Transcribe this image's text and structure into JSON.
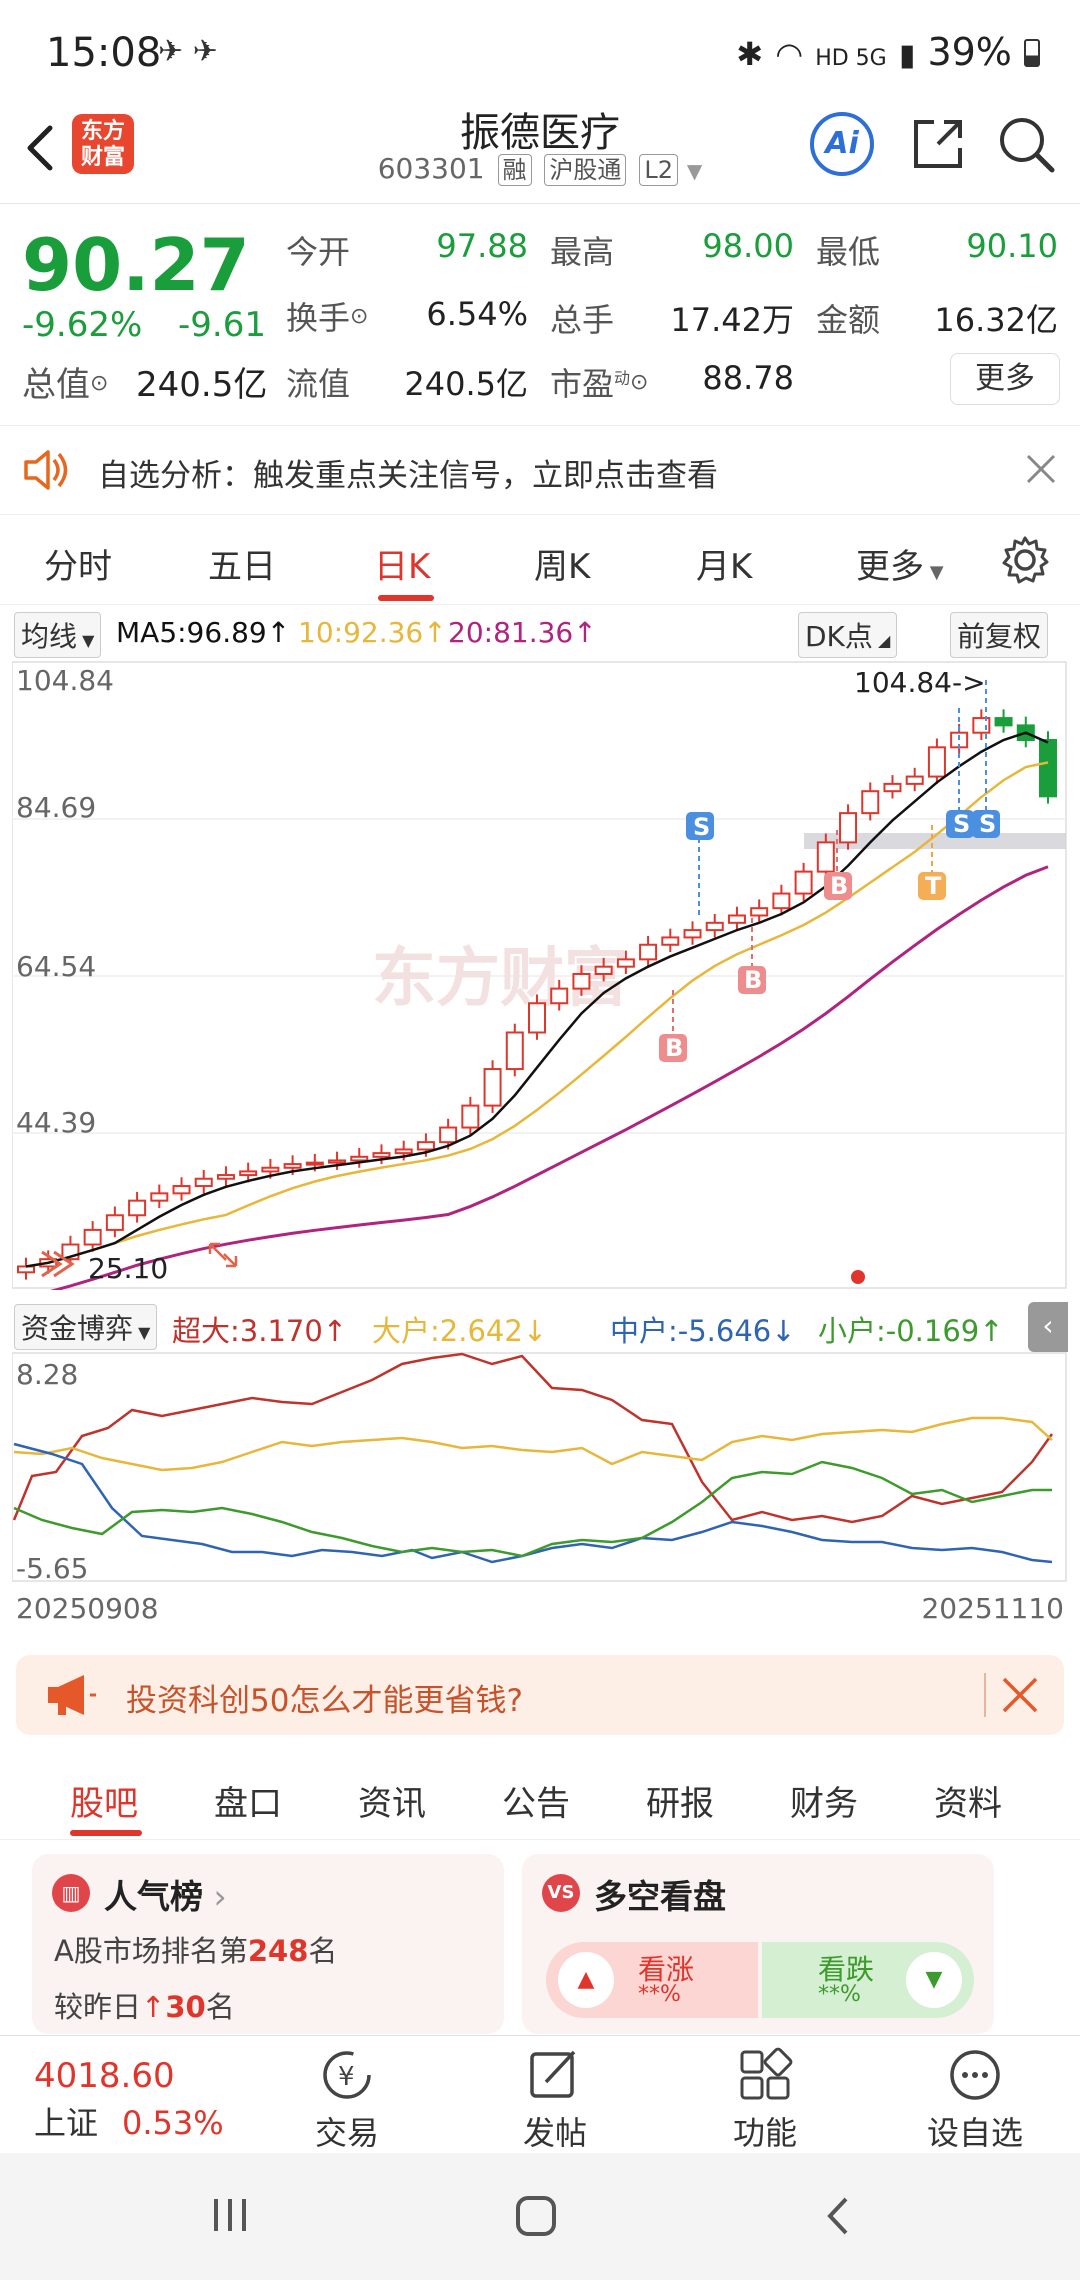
{
  "status_bar": {
    "time": "15:08",
    "network": "HD 5G",
    "battery": "39%"
  },
  "header": {
    "logo_text": "东方财富",
    "title": "振德医疗",
    "code": "603301",
    "tags": [
      "融",
      "沪股通",
      "L2"
    ],
    "ai_label": "Ai"
  },
  "quote": {
    "price": "90.27",
    "change_pct": "-9.62%",
    "change_val": "-9.61",
    "open_label": "今开",
    "open": "97.88",
    "high_label": "最高",
    "high": "98.00",
    "low_label": "最低",
    "low": "90.10",
    "turnover_label": "换手",
    "turnover": "6.54%",
    "volume_label": "总手",
    "volume": "17.42万",
    "amount_label": "金额",
    "amount": "16.32亿",
    "mcap_label": "总值",
    "mcap": "240.5亿",
    "float_label": "流值",
    "float_cap": "240.5亿",
    "pe_label": "市盈",
    "pe_sup": "动",
    "pe": "88.78",
    "more_label": "更多"
  },
  "notice": {
    "text": "自选分析：触发重点关注信号，立即点击查看"
  },
  "chart_tabs": {
    "items": [
      "分时",
      "五日",
      "日K",
      "周K",
      "月K",
      "更多"
    ],
    "active": "日K"
  },
  "ma_row": {
    "selector": "均线",
    "ma5": "MA5:96.89↑",
    "ma10": "10:92.36↑",
    "ma20": "20:81.36↑",
    "dk": "DK点",
    "adjust": "前复权"
  },
  "kline": {
    "y_labels": [
      "104.84",
      "84.69",
      "64.54",
      "44.39"
    ],
    "high_annotation": "104.84->",
    "low_annotation": "25.10",
    "signals": [
      "S",
      "B",
      "B",
      "B",
      "T",
      "S",
      "S"
    ]
  },
  "flow_row": {
    "selector": "资金博弈",
    "super": "超大:3.170↑",
    "big": "大户:2.642↓",
    "mid": "中户:-5.646↓",
    "small": "小户:-0.169↑"
  },
  "flow_chart": {
    "y_max": "8.28",
    "y_min": "-5.65"
  },
  "dates": {
    "start": "20250908",
    "end": "20251110"
  },
  "ad": {
    "text": "投资科创50怎么才能更省钱?"
  },
  "sub_tabs": {
    "items": [
      "股吧",
      "盘口",
      "资讯",
      "公告",
      "研报",
      "财务",
      "资料"
    ],
    "active": "股吧"
  },
  "cards": {
    "popularity": {
      "title": "人气榜",
      "rank_prefix": "A股市场排名第",
      "rank": "248",
      "rank_suffix": "名",
      "change_prefix": "较昨日",
      "change": "30",
      "change_suffix": "名"
    },
    "sentiment": {
      "title": "多空看盘",
      "bull": "看涨",
      "bull_val": "**%",
      "bear": "看跌",
      "bear_val": "**%"
    }
  },
  "bottom_nav": {
    "index_value": "4018.60",
    "index_name": "上证",
    "index_pct": "0.53%",
    "items": [
      "交易",
      "发帖",
      "功能",
      "设自选"
    ]
  },
  "colors": {
    "up": "#e0352b",
    "down": "#1a9e3b",
    "ma5": "#111111",
    "ma10": "#e8b73a",
    "ma20": "#b0237e",
    "mid": "#2f64b3"
  }
}
